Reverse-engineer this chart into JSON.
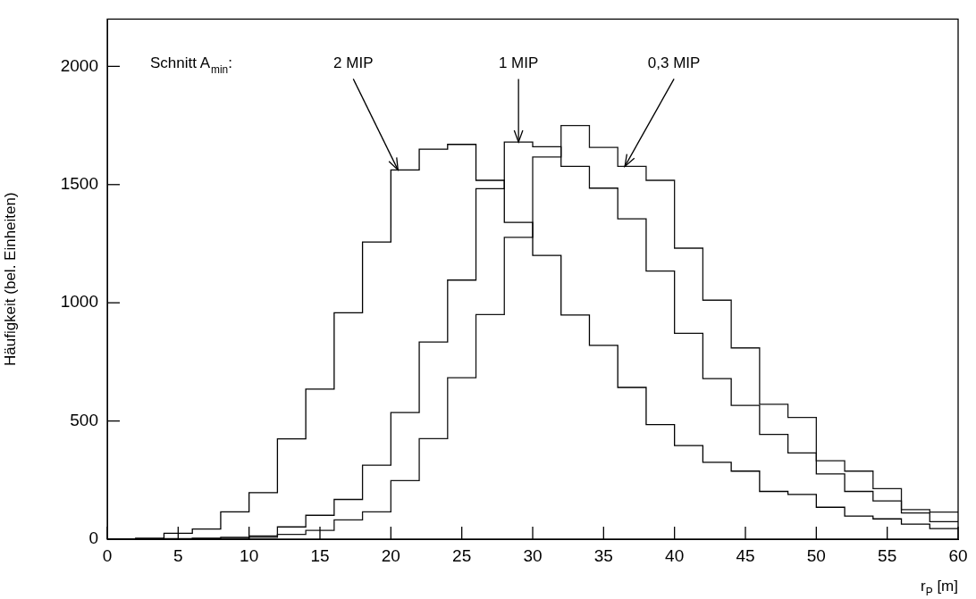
{
  "chart_data": {
    "type": "histogram",
    "xlabel": "r$_{P}$ [m]",
    "ylabel": "Häufigkeit (bel. Einheiten)",
    "bins": [
      0,
      2,
      4,
      6,
      8,
      10,
      12,
      14,
      16,
      18,
      20,
      22,
      24,
      26,
      28,
      30,
      32,
      34,
      36,
      38,
      40,
      42,
      44,
      46,
      48,
      50,
      52,
      54,
      56,
      58,
      60
    ],
    "series": [
      {
        "color": "#000000",
        "values": [
          0,
          4,
          25,
          43,
          116,
          197,
          424,
          635,
          958,
          1257,
          1562,
          1650,
          1670,
          1518,
          1340,
          1200,
          948,
          820,
          642,
          485,
          396,
          325,
          288,
          202,
          189,
          135,
          98,
          86,
          64,
          45
        ]
      },
      {
        "color": "#0a0a0a",
        "values": [
          0,
          1,
          2,
          4,
          8,
          14,
          52,
          101,
          168,
          313,
          536,
          834,
          1096,
          1483,
          1680,
          1660,
          1577,
          1485,
          1355,
          1134,
          871,
          679,
          566,
          443,
          365,
          276,
          202,
          162,
          111,
          74
        ]
      },
      {
        "color": "#141414",
        "values": [
          0,
          0,
          1,
          2,
          4,
          8,
          20,
          37,
          82,
          116,
          248,
          425,
          683,
          950,
          1277,
          1617,
          1750,
          1657,
          1577,
          1518,
          1231,
          1011,
          809,
          571,
          515,
          332,
          288,
          214,
          125,
          115
        ]
      }
    ],
    "xlim": [
      0,
      60
    ],
    "xticks": [
      0,
      5,
      10,
      15,
      20,
      25,
      30,
      35,
      40,
      45,
      50,
      55,
      60
    ],
    "ylim": [
      0,
      2200
    ],
    "yticks": [
      0,
      500,
      1000,
      1500,
      2000
    ],
    "grid": false,
    "legend": false,
    "annotations": [
      "Schnitt A$_{min}$:",
      {
        "text": "2 MIP",
        "x": 20.5,
        "y": 1562
      },
      {
        "text": "1 MIP",
        "x": 29,
        "y": 1680
      },
      {
        "text": "0,3 MIP",
        "x": 36.5,
        "y": 1577
      }
    ]
  }
}
